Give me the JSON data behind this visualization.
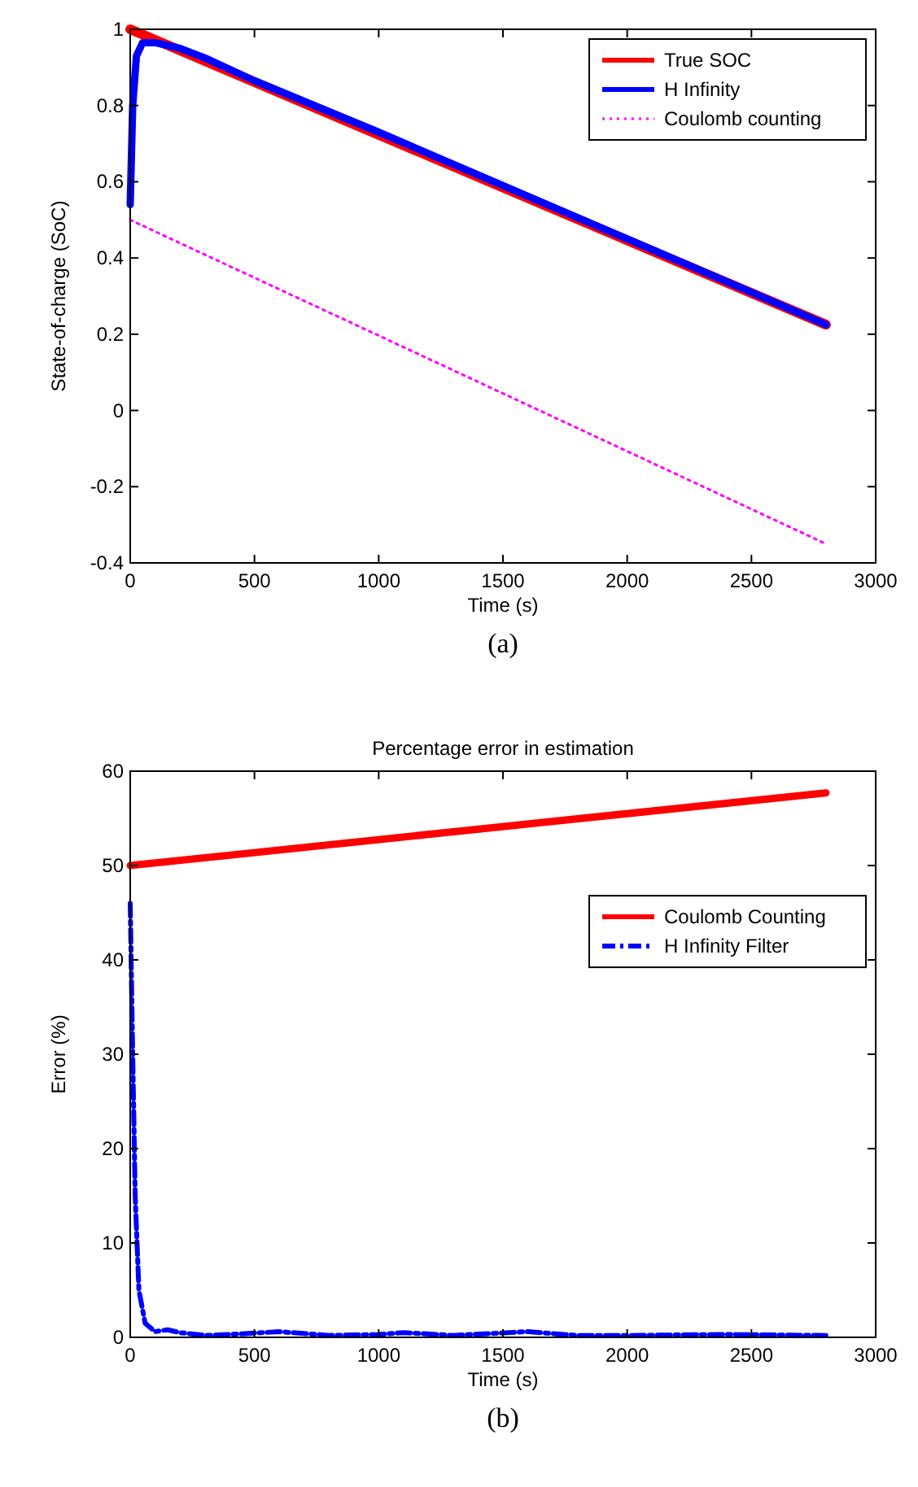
{
  "chart_data": [
    {
      "type": "line",
      "xlabel": "Time (s)",
      "ylabel": "State-of-charge (SoC)",
      "xlim": [
        0,
        3000
      ],
      "xticks": [
        0,
        500,
        1000,
        1500,
        2000,
        2500,
        3000
      ],
      "ylim": [
        -0.4,
        1
      ],
      "yticks": [
        -0.4,
        -0.2,
        0,
        0.2,
        0.4,
        0.6,
        0.8,
        1
      ],
      "legend": "top right",
      "grid": false,
      "annotations": [
        "(a)"
      ],
      "series": [
        {
          "name": "True SOC",
          "color": "#ff0000",
          "line_style": "solid",
          "x": [
            0,
            2800
          ],
          "values": [
            1,
            0.225
          ]
        },
        {
          "name": "H Infinity",
          "color": "#0000ff",
          "line_style": "solid",
          "x": [
            0,
            10,
            25,
            50,
            100,
            200,
            300,
            500,
            1000,
            1500,
            2000,
            2500,
            2800
          ],
          "values": [
            0.54,
            0.8,
            0.93,
            0.965,
            0.965,
            0.95,
            0.925,
            0.865,
            0.73,
            0.59,
            0.45,
            0.31,
            0.225
          ]
        },
        {
          "name": "Coulomb counting",
          "color": "#ff00ff",
          "line_style": "dotted",
          "x": [
            0,
            2800
          ],
          "values": [
            0.5,
            -0.35
          ]
        }
      ]
    },
    {
      "type": "line",
      "title": "Percentage error in estimation",
      "xlabel": "Time (s)",
      "ylabel": "Error (%)",
      "xlim": [
        0,
        3000
      ],
      "xticks": [
        0,
        500,
        1000,
        1500,
        2000,
        2500,
        3000
      ],
      "ylim": [
        0,
        60
      ],
      "yticks": [
        0,
        10,
        20,
        30,
        40,
        50,
        60
      ],
      "legend": "right",
      "grid": false,
      "annotations": [
        "(b)"
      ],
      "series": [
        {
          "name": "Coulomb Counting",
          "color": "#ff0000",
          "line_style": "solid",
          "x": [
            0,
            2800
          ],
          "values": [
            50,
            57.7
          ]
        },
        {
          "name": "H Infinity Filter",
          "color": "#0000ff",
          "line_style": "dashdot",
          "x": [
            0,
            10,
            20,
            35,
            60,
            100,
            150,
            200,
            300,
            400,
            600,
            800,
            1000,
            1100,
            1300,
            1600,
            1800,
            2000,
            2400,
            2800
          ],
          "values": [
            46,
            30,
            15,
            5,
            1.5,
            0.6,
            0.8,
            0.5,
            0.2,
            0.3,
            0.6,
            0.2,
            0.3,
            0.5,
            0.2,
            0.6,
            0.2,
            0.2,
            0.3,
            0.2
          ]
        }
      ]
    }
  ]
}
